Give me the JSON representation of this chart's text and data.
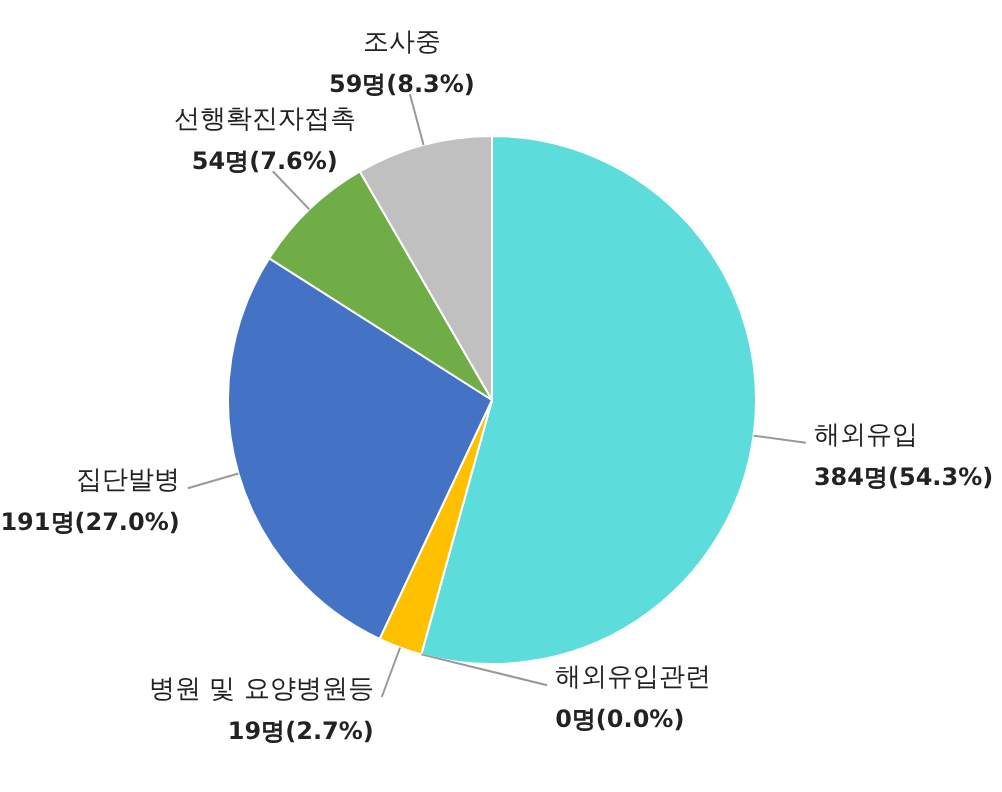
{
  "chart_data": {
    "type": "pie",
    "categories": [
      "해외유입",
      "해외유입관련",
      "병원 및 요양병원등",
      "집단발병",
      "선행확진자접촉",
      "조사중"
    ],
    "values": [
      384,
      0,
      19,
      191,
      54,
      59
    ],
    "value_labels": [
      "384명(54.3%)",
      "0명(0.0%)",
      "19명(2.7%)",
      "191명(27.0%)",
      "54명(7.6%)",
      "59명(8.3%)"
    ],
    "colors": [
      "#5ddcdc",
      "#f2b705",
      "#ffc000",
      "#4472c4",
      "#70ad47",
      "#c0c0c0"
    ]
  }
}
